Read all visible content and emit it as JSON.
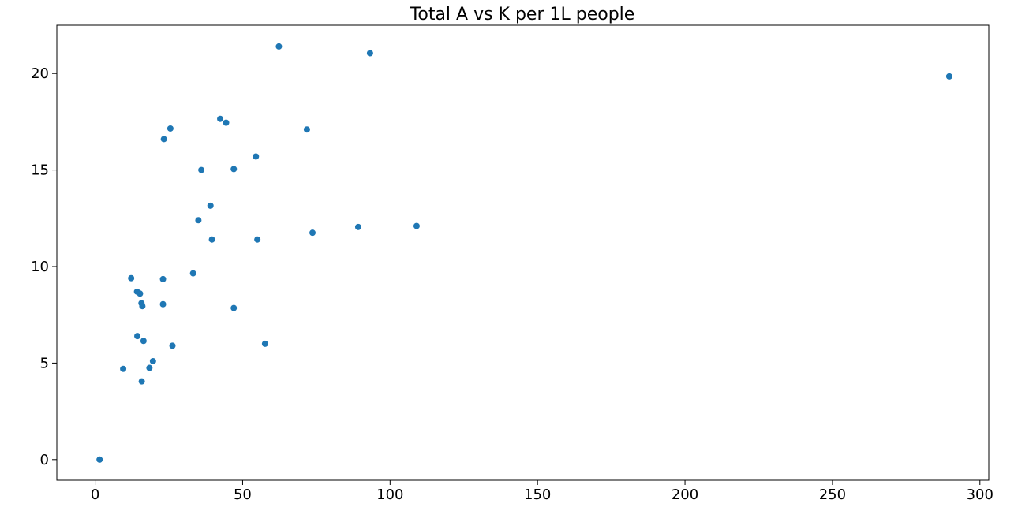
{
  "chart_data": {
    "type": "scatter",
    "title": "Total A vs K per 1L people",
    "xlabel": "",
    "ylabel": "",
    "xlim": [
      -13,
      303
    ],
    "ylim": [
      -1.07,
      22.5
    ],
    "x_ticks": [
      0,
      50,
      100,
      150,
      200,
      250,
      300
    ],
    "y_ticks": [
      0,
      5,
      10,
      15,
      20
    ],
    "x_tick_labels": [
      "0",
      "50",
      "100",
      "150",
      "200",
      "250",
      "300"
    ],
    "y_tick_labels": [
      "0",
      "5",
      "10",
      "15",
      "20"
    ],
    "grid": false,
    "legend": false,
    "colors": {
      "marker": "#1f77b4",
      "axes": "#000000",
      "background": "#ffffff"
    },
    "series": [
      {
        "points": [
          {
            "x": 1.5,
            "y": 0.0
          },
          {
            "x": 9.5,
            "y": 4.7
          },
          {
            "x": 12.2,
            "y": 9.4
          },
          {
            "x": 14.2,
            "y": 8.7
          },
          {
            "x": 14.3,
            "y": 6.4
          },
          {
            "x": 15.2,
            "y": 8.6
          },
          {
            "x": 15.7,
            "y": 8.1
          },
          {
            "x": 16.0,
            "y": 7.95
          },
          {
            "x": 15.8,
            "y": 4.05
          },
          {
            "x": 16.4,
            "y": 6.15
          },
          {
            "x": 18.4,
            "y": 4.75
          },
          {
            "x": 19.6,
            "y": 5.1
          },
          {
            "x": 23.0,
            "y": 9.35
          },
          {
            "x": 23.0,
            "y": 8.05
          },
          {
            "x": 23.3,
            "y": 16.6
          },
          {
            "x": 25.5,
            "y": 17.15
          },
          {
            "x": 26.2,
            "y": 5.9
          },
          {
            "x": 33.2,
            "y": 9.65
          },
          {
            "x": 35.0,
            "y": 12.4
          },
          {
            "x": 36.0,
            "y": 15.0
          },
          {
            "x": 39.1,
            "y": 13.15
          },
          {
            "x": 39.6,
            "y": 11.4
          },
          {
            "x": 42.4,
            "y": 17.65
          },
          {
            "x": 44.4,
            "y": 17.45
          },
          {
            "x": 47.0,
            "y": 15.05
          },
          {
            "x": 47.0,
            "y": 7.85
          },
          {
            "x": 54.5,
            "y": 15.7
          },
          {
            "x": 55.0,
            "y": 11.4
          },
          {
            "x": 57.6,
            "y": 6.0
          },
          {
            "x": 62.3,
            "y": 21.4
          },
          {
            "x": 71.8,
            "y": 17.1
          },
          {
            "x": 73.7,
            "y": 11.75
          },
          {
            "x": 89.2,
            "y": 12.05
          },
          {
            "x": 93.2,
            "y": 21.05
          },
          {
            "x": 109.0,
            "y": 12.1
          },
          {
            "x": 289.6,
            "y": 19.85
          }
        ]
      }
    ]
  }
}
